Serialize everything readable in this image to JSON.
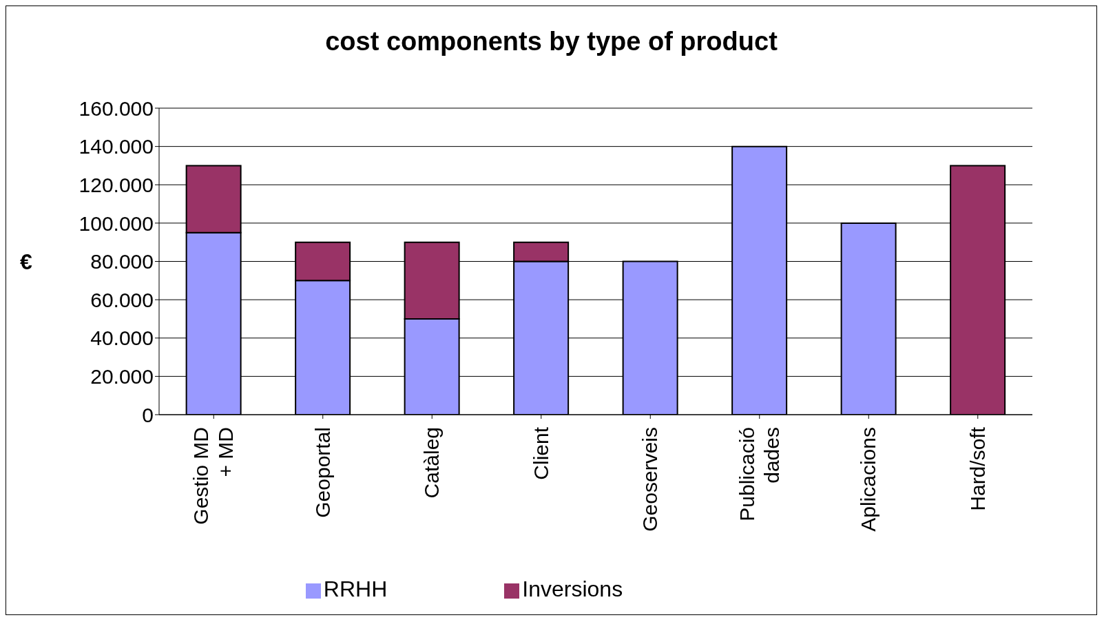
{
  "chart_data": {
    "type": "bar",
    "title": "cost components by type of product",
    "ylabel": "€",
    "categories": [
      "Gestio MD\n+ MD",
      "Geoportal",
      "Catàleg",
      "Client",
      "Geoserveis",
      "Publicació\ndades",
      "Aplicacions",
      "Hard/soft"
    ],
    "series": [
      {
        "name": "RRHH",
        "color": "#9999ff",
        "values": [
          95000,
          70000,
          50000,
          80000,
          80000,
          140000,
          100000,
          0
        ]
      },
      {
        "name": "Inversions",
        "color": "#993366",
        "values": [
          35000,
          20000,
          40000,
          10000,
          0,
          0,
          0,
          130000
        ]
      }
    ],
    "stacked": true,
    "ylim": [
      0,
      160000
    ],
    "yticks": [
      0,
      {
        "value": 20000,
        "label": "20.000"
      },
      {
        "value": 40000,
        "label": "40.000"
      },
      {
        "value": 60000,
        "label": "60.000"
      },
      {
        "value": 80000,
        "label": "80.000"
      },
      {
        "value": 100000,
        "label": "100.000"
      },
      {
        "value": 120000,
        "label": "120.000"
      },
      {
        "value": 140000,
        "label": "140.000"
      },
      {
        "value": 160000,
        "label": "160.000"
      }
    ],
    "grid": "y",
    "legend": "bottom"
  }
}
